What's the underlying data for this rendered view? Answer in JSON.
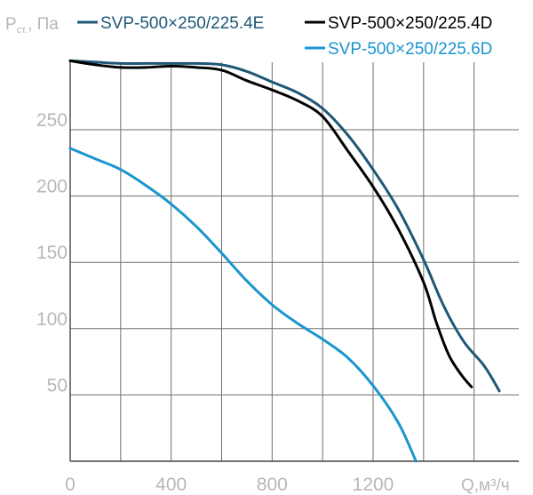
{
  "chart_data": {
    "type": "line",
    "ylabel_main": "P",
    "ylabel_sub": "ст.",
    "ylabel_unit": ", Па",
    "xlabel": "Q,м³/ч",
    "xlim": [
      0,
      1600
    ],
    "ylim": [
      0,
      300
    ],
    "x_ticks": [
      0,
      400,
      800,
      1200
    ],
    "x_tick_labels": [
      "0",
      "400",
      "800",
      "1200"
    ],
    "y_ticks": [
      50,
      100,
      150,
      200,
      250
    ],
    "y_tick_labels": [
      "50",
      "100",
      "150",
      "200",
      "250"
    ],
    "grid": true,
    "legend_position": "top",
    "series": [
      {
        "name": "SVP-500×250/225.4E",
        "color": "#1f5876",
        "points": [
          [
            0,
            302
          ],
          [
            100,
            301
          ],
          [
            200,
            300
          ],
          [
            300,
            300
          ],
          [
            400,
            300
          ],
          [
            500,
            300
          ],
          [
            600,
            299
          ],
          [
            700,
            294
          ],
          [
            800,
            286
          ],
          [
            900,
            278
          ],
          [
            1000,
            266
          ],
          [
            1100,
            246
          ],
          [
            1200,
            220
          ],
          [
            1300,
            190
          ],
          [
            1400,
            152
          ],
          [
            1480,
            117
          ],
          [
            1560,
            90
          ],
          [
            1640,
            72
          ],
          [
            1700,
            53
          ]
        ]
      },
      {
        "name": "SVP-500×250/225.4D",
        "color": "#000000",
        "points": [
          [
            0,
            302
          ],
          [
            100,
            299
          ],
          [
            200,
            297
          ],
          [
            300,
            297
          ],
          [
            400,
            298
          ],
          [
            500,
            297
          ],
          [
            600,
            295
          ],
          [
            700,
            287
          ],
          [
            800,
            280
          ],
          [
            900,
            272
          ],
          [
            1000,
            260
          ],
          [
            1100,
            234
          ],
          [
            1200,
            207
          ],
          [
            1300,
            175
          ],
          [
            1400,
            135
          ],
          [
            1450,
            105
          ],
          [
            1500,
            80
          ],
          [
            1550,
            65
          ],
          [
            1590,
            56
          ]
        ]
      },
      {
        "name": "SVP-500×250/225.6D",
        "color": "#1a95cf",
        "points": [
          [
            0,
            236
          ],
          [
            100,
            228
          ],
          [
            200,
            220
          ],
          [
            300,
            208
          ],
          [
            400,
            194
          ],
          [
            500,
            177
          ],
          [
            600,
            157
          ],
          [
            700,
            136
          ],
          [
            800,
            118
          ],
          [
            900,
            104
          ],
          [
            1000,
            92
          ],
          [
            1100,
            78
          ],
          [
            1200,
            57
          ],
          [
            1300,
            29
          ],
          [
            1370,
            0
          ]
        ]
      }
    ]
  }
}
